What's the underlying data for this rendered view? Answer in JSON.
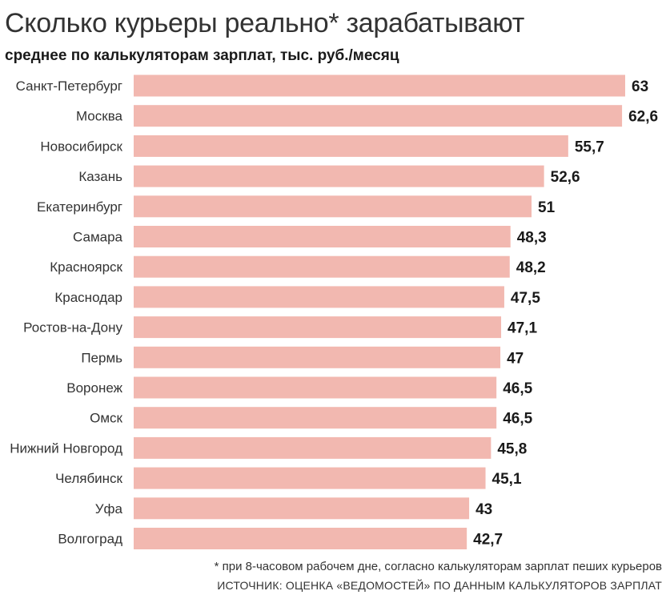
{
  "chart_data": {
    "type": "bar",
    "orientation": "horizontal",
    "title": "Сколько курьеры реально* зарабатывают",
    "subtitle": "среднее по калькуляторам зарплат, тыс. руб./месяц",
    "categories": [
      "Санкт-Петербург",
      "Москва",
      "Новосибирск",
      "Казань",
      "Екатеринбург",
      "Самара",
      "Красноярск",
      "Краснодар",
      "Ростов-на-Дону",
      "Пермь",
      "Воронеж",
      "Омск",
      "Нижний Новгород",
      "Челябинск",
      "Уфа",
      "Волгоград"
    ],
    "values": [
      63,
      62.6,
      55.7,
      52.6,
      51,
      48.3,
      48.2,
      47.5,
      47.1,
      47,
      46.5,
      46.5,
      45.8,
      45.1,
      43,
      42.7
    ],
    "value_labels": [
      "63",
      "62,6",
      "55,7",
      "52,6",
      "51",
      "48,3",
      "48,2",
      "47,5",
      "47,1",
      "47",
      "46,5",
      "46,5",
      "45,8",
      "45,1",
      "43",
      "42,7"
    ],
    "xlim": [
      0,
      63
    ],
    "grid": false,
    "bar_color": "#f2b8b0"
  },
  "footnote": "* при 8-часовом рабочем дне, согласно калькуляторам зарплат пеших курьеров",
  "source": "ИСТОЧНИК: ОЦЕНКА «ВЕДОМОСТЕЙ» ПО ДАННЫМ КАЛЬКУЛЯТОРОВ ЗАРПЛАТ"
}
